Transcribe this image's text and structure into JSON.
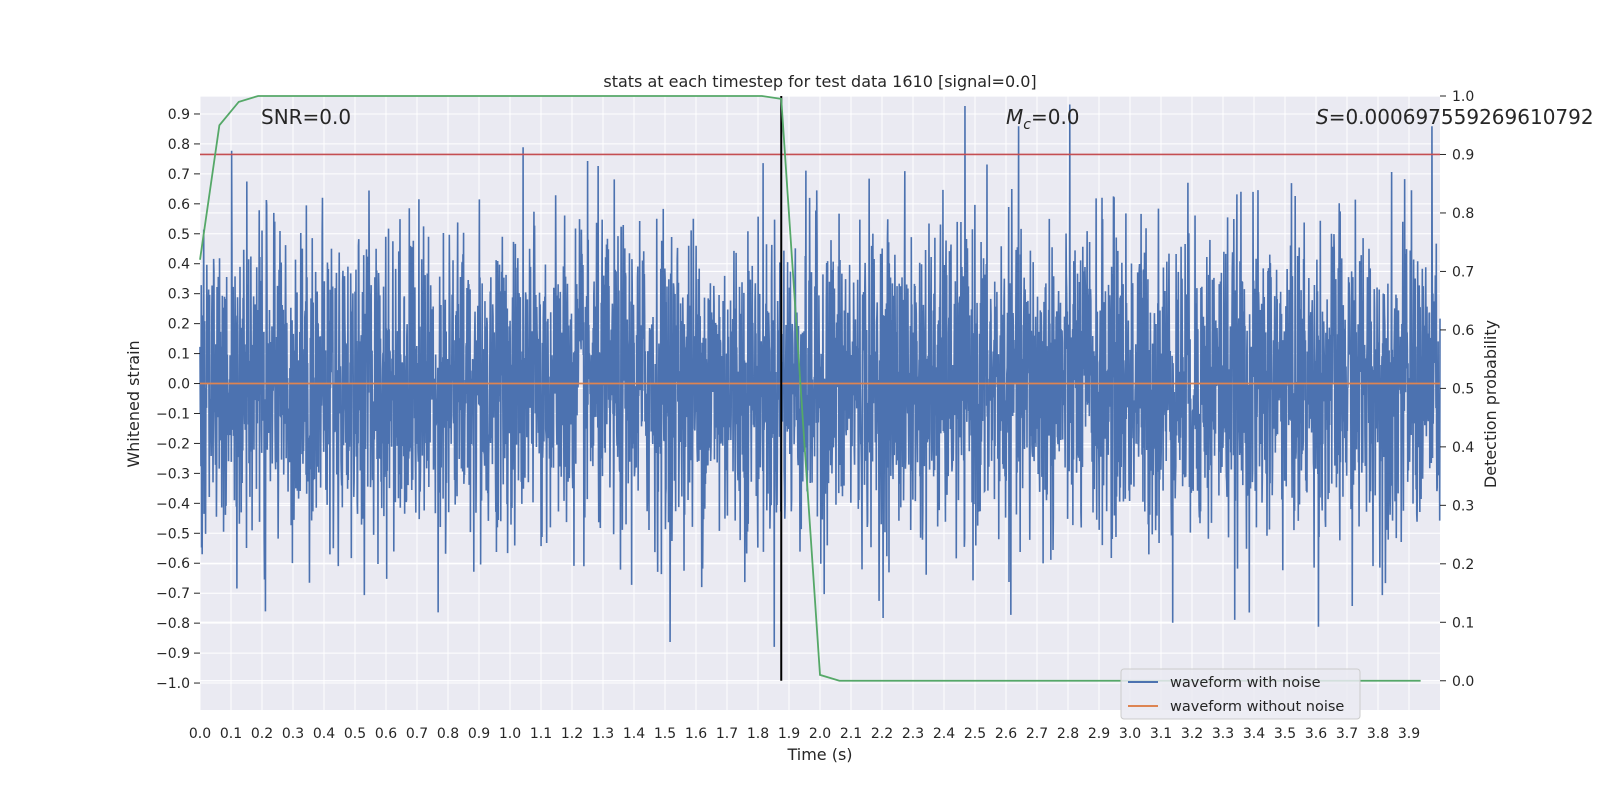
{
  "chart_data": {
    "type": "line",
    "title": "stats at each timestep for test data 1610 [signal=0.0]",
    "xlabel": "Time (s)",
    "ylabel": "Whitened strain",
    "ylabel_right": "Detection probability",
    "xlim": [
      0.0,
      4.0
    ],
    "ylim": [
      -1.09,
      0.96
    ],
    "ylim_right": [
      -0.05,
      1.0
    ],
    "x_ticks": [
      "0.0",
      "0.1",
      "0.2",
      "0.3",
      "0.4",
      "0.5",
      "0.6",
      "0.7",
      "0.8",
      "0.9",
      "1.0",
      "1.1",
      "1.2",
      "1.3",
      "1.4",
      "1.5",
      "1.6",
      "1.7",
      "1.8",
      "1.9",
      "2.0",
      "2.1",
      "2.2",
      "2.3",
      "2.4",
      "2.5",
      "2.6",
      "2.7",
      "2.8",
      "2.9",
      "3.0",
      "3.1",
      "3.2",
      "3.3",
      "3.4",
      "3.5",
      "3.6",
      "3.7",
      "3.8",
      "3.9"
    ],
    "y_ticks": [
      "0.9",
      "0.8",
      "0.7",
      "0.6",
      "0.5",
      "0.4",
      "0.3",
      "0.2",
      "0.1",
      "0.0",
      "−0.1",
      "−0.2",
      "−0.3",
      "−0.4",
      "−0.5",
      "−0.6",
      "−0.7",
      "−0.8",
      "−0.9",
      "−1.0"
    ],
    "y_ticks_right": [
      "1.0",
      "0.9",
      "0.8",
      "0.7",
      "0.6",
      "0.5",
      "0.4",
      "0.3",
      "0.2",
      "0.1",
      "0.0"
    ],
    "annotations": {
      "snr": "SNR=0.0",
      "mc_symbol": "M",
      "mc_sub": "c",
      "mc_value": "=0.0",
      "s_symbol": "S",
      "s_value": "=0.000697559269610792"
    },
    "hlines": {
      "threshold_prob": 0.9,
      "zero_strain": 0.0
    },
    "vline_x": 1.875,
    "series": [
      {
        "name": "waveform with noise",
        "color": "#4c72b0",
        "kind": "noise",
        "x_range": [
          0.0,
          4.0
        ],
        "envelope_abs_max": 0.96
      },
      {
        "name": "waveform without noise",
        "color": "#dd8452",
        "x": [
          0.0,
          4.0
        ],
        "y": [
          0.0,
          0.0
        ]
      },
      {
        "name": "Detection probability",
        "color": "#55a868",
        "axis": "right",
        "x": [
          0.0,
          0.0625,
          0.125,
          0.1875,
          0.25,
          0.3125,
          1.6875,
          1.75,
          1.8125,
          1.875,
          2.0,
          2.0625,
          3.9375
        ],
        "y": [
          0.72,
          0.95,
          0.99,
          1.0,
          1.0,
          1.0,
          1.0,
          1.0,
          1.0,
          0.995,
          0.01,
          0.0,
          0.0
        ]
      }
    ],
    "legend": [
      "waveform with noise",
      "waveform without noise"
    ],
    "legend_position": "bottom-right",
    "grid": true,
    "colors": {
      "background": "#eaeaf2",
      "grid": "#ffffff",
      "threshold": "#c44e52",
      "vline": "#000000"
    }
  }
}
